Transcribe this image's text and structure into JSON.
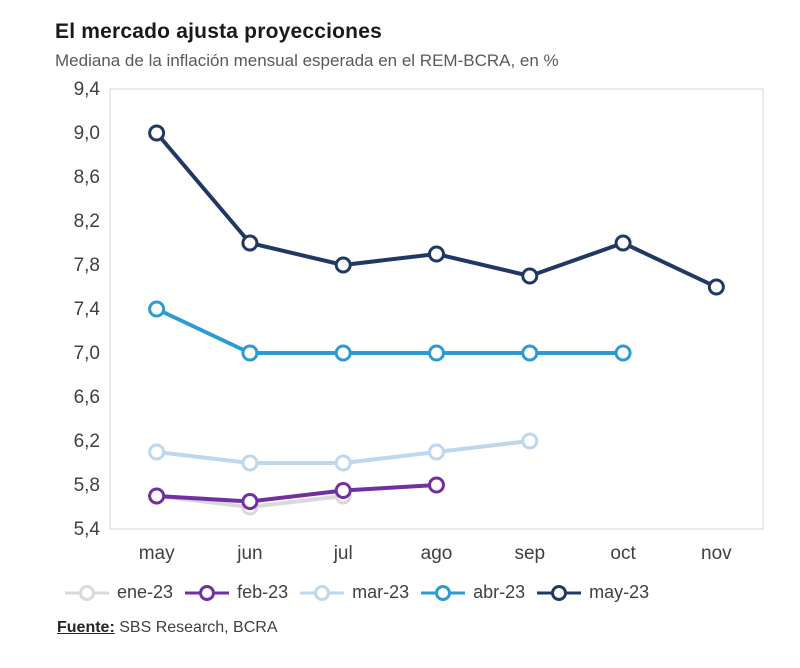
{
  "header": {
    "title": "El mercado ajusta proyecciones",
    "subtitle": "Mediana de la inflación mensual esperada en el REM-BCRA, en %"
  },
  "footer": {
    "source_label": "Fuente:",
    "source_text": " SBS Research, BCRA"
  },
  "colors": {
    "axis_text": "#404040",
    "plot_border": "#d6d6d6",
    "background": "#ffffff"
  },
  "chart_data": {
    "type": "line",
    "title": "El mercado ajusta proyecciones",
    "subtitle": "Mediana de la inflación mensual esperada en el REM-BCRA, en %",
    "categories": [
      "may",
      "jun",
      "jul",
      "ago",
      "sep",
      "oct",
      "nov"
    ],
    "series": [
      {
        "name": "ene-23",
        "color": "#d9d9d9",
        "values": [
          5.7,
          5.6,
          5.7,
          null,
          null,
          null,
          null
        ]
      },
      {
        "name": "feb-23",
        "color": "#7030a0",
        "values": [
          5.7,
          5.65,
          5.75,
          5.8,
          null,
          null,
          null
        ]
      },
      {
        "name": "mar-23",
        "color": "#bdd7ee",
        "values": [
          6.1,
          6.0,
          6.0,
          6.1,
          6.2,
          null,
          null
        ]
      },
      {
        "name": "abr-23",
        "color": "#2e9ad2",
        "values": [
          7.4,
          7.0,
          7.0,
          7.0,
          7.0,
          7.0,
          null
        ]
      },
      {
        "name": "may-23",
        "color": "#1f3864",
        "values": [
          9.0,
          8.0,
          7.8,
          7.9,
          7.7,
          8.0,
          7.6
        ]
      }
    ],
    "ylim": [
      5.4,
      9.4
    ],
    "ytick_step": 0.4,
    "ytick_labels": [
      "5,4",
      "5,8",
      "6,2",
      "6,6",
      "7,0",
      "7,4",
      "7,8",
      "8,2",
      "8,6",
      "9,0",
      "9,4"
    ],
    "grid": false,
    "legend_position": "bottom",
    "marker": "open-circle"
  }
}
